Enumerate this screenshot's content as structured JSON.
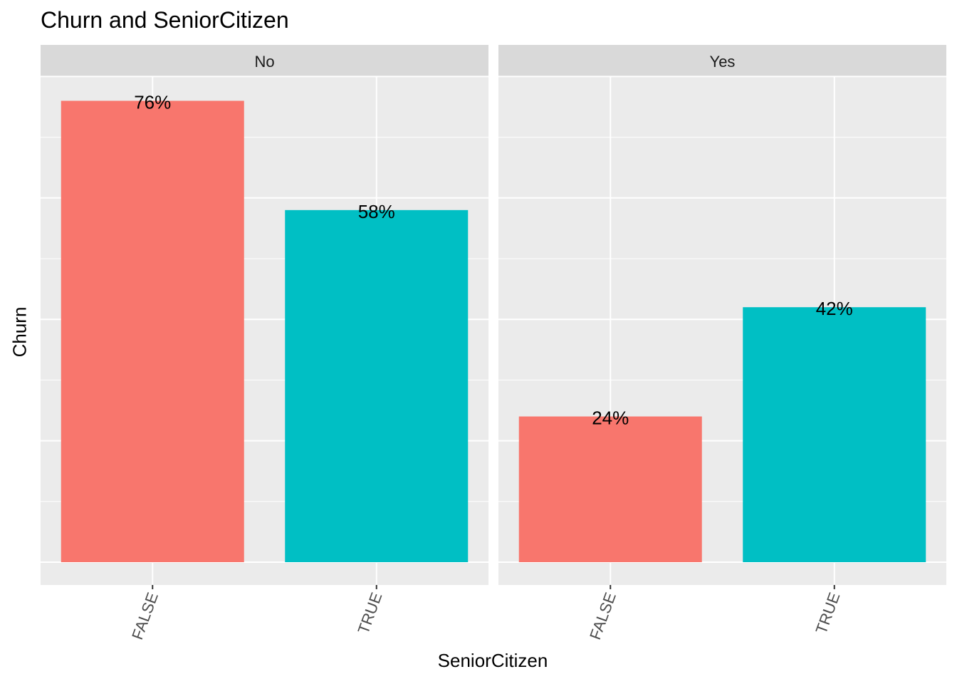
{
  "chart_data": {
    "type": "bar",
    "title": "Churn and SeniorCitizen",
    "xlabel": "SeniorCitizen",
    "ylabel": "Churn",
    "y_tick_labels_shown": false,
    "ylim": [
      0,
      80
    ],
    "grid": true,
    "categories": [
      "FALSE",
      "TRUE"
    ],
    "category_colors": {
      "FALSE": "#F8766D",
      "TRUE": "#00BFC4"
    },
    "facets": [
      {
        "label": "No",
        "values": [
          76,
          58
        ],
        "data_labels": [
          "76%",
          "58%"
        ]
      },
      {
        "label": "Yes",
        "values": [
          24,
          42
        ],
        "data_labels": [
          "24%",
          "42%"
        ]
      }
    ]
  },
  "theme": {
    "panel_background": "#EBEBEB",
    "strip_background": "#D9D9D9",
    "grid_color": "#FFFFFF",
    "axis_text_color": "#4D4D4D"
  }
}
